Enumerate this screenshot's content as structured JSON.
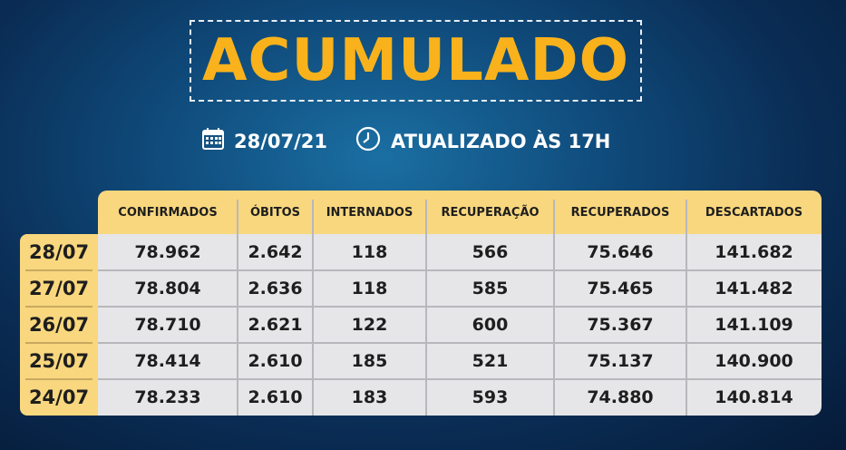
{
  "title": "ACUMULADO",
  "date": "28/07/21",
  "updated": "ATUALIZADO ÀS 17H",
  "icons": {
    "date": "calendar-icon",
    "updated": "clock-icon"
  },
  "colors": {
    "accent": "#f9b21b",
    "header": "#f9d77e",
    "body": "#e6e6e8"
  },
  "table": {
    "columns": [
      "CONFIRMADOS",
      "ÓBITOS",
      "INTERNADOS",
      "RECUPERAÇÃO",
      "RECUPERADOS",
      "DESCARTADOS"
    ],
    "rows": [
      {
        "date": "28/07",
        "values": [
          "78.962",
          "2.642",
          "118",
          "566",
          "75.646",
          "141.682"
        ]
      },
      {
        "date": "27/07",
        "values": [
          "78.804",
          "2.636",
          "118",
          "585",
          "75.465",
          "141.482"
        ]
      },
      {
        "date": "26/07",
        "values": [
          "78.710",
          "2.621",
          "122",
          "600",
          "75.367",
          "141.109"
        ]
      },
      {
        "date": "25/07",
        "values": [
          "78.414",
          "2.610",
          "185",
          "521",
          "75.137",
          "140.900"
        ]
      },
      {
        "date": "24/07",
        "values": [
          "78.233",
          "2.610",
          "183",
          "593",
          "74.880",
          "140.814"
        ]
      }
    ]
  }
}
